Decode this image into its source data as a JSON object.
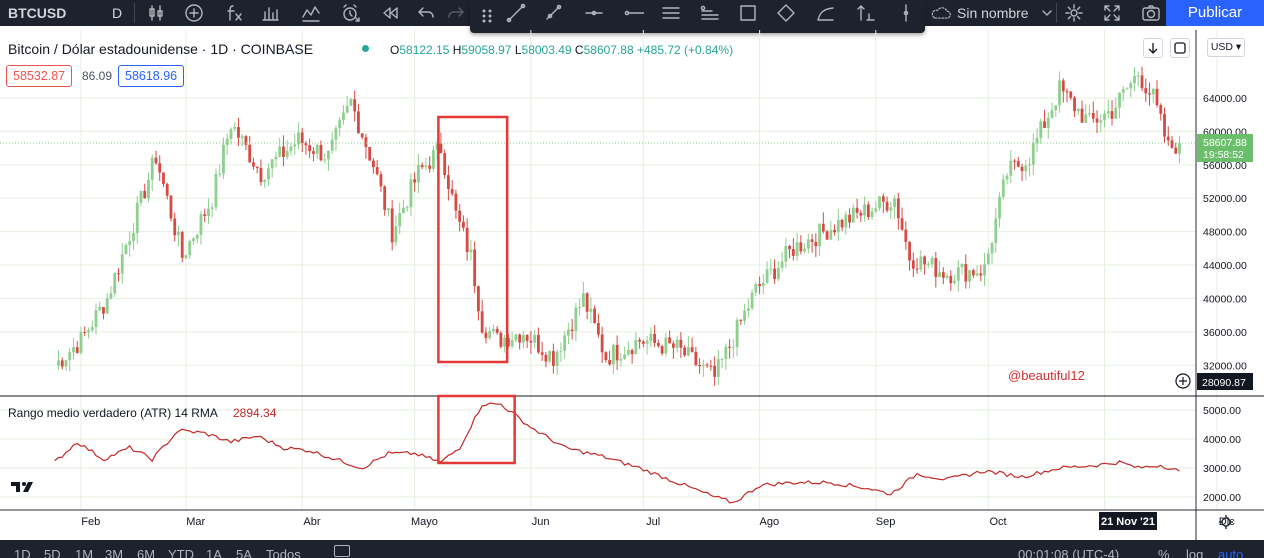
{
  "toolbar": {
    "symbol": "BTCUSD",
    "interval": "D",
    "layout_name": "Sin nombre",
    "publish_label": "Publicar",
    "icons": [
      "candles-icon",
      "add-icon",
      "fx-icon",
      "bar-chart-icon",
      "indicator-icon",
      "alert-icon",
      "replay-icon",
      "undo-icon",
      "redo-icon",
      "trendline-icon",
      "brush-icon",
      "horizontal-ray-icon",
      "horizontal-line-icon",
      "parallel-channel-icon",
      "pitchfork-icon",
      "rectangle-icon",
      "ellipse-icon",
      "polyline-icon",
      "fib-icon",
      "vertical-line-icon",
      "cloud-icon",
      "gear-icon",
      "fullscreen-icon",
      "camera-icon"
    ]
  },
  "legend": {
    "title": "Bitcoin / Dólar estadounidense · 1D · COINBASE",
    "open_k": "O",
    "open": "58122.15",
    "high_k": "H",
    "high": "59058.97",
    "low_k": "L",
    "low": "58003.49",
    "close_k": "C",
    "close": "58607.88",
    "change": "+485.72 (+0.84%)",
    "sell": "58532.87",
    "spread": "86.09",
    "buy": "58618.96"
  },
  "indicator": {
    "label": "Rango medio verdadero (ATR) 14 RMA",
    "value": "2894.34"
  },
  "currency": "USD",
  "bottom": {
    "ranges": [
      "1D",
      "5D",
      "1M",
      "3M",
      "6M",
      "YTD",
      "1A",
      "5A",
      "Todos"
    ],
    "clock": "00:01:08 (UTC-4)",
    "percent": "%",
    "log": "log",
    "auto": "auto"
  },
  "chart_data": [
    {
      "type": "candlestick",
      "title": "Bitcoin / Dólar estadounidense",
      "interval": "1D",
      "exchange": "COINBASE",
      "y_ticks": [
        "32000.00",
        "36000.00",
        "40000.00",
        "44000.00",
        "48000.00",
        "52000.00",
        "56000.00",
        "60000.00",
        "64000.00"
      ],
      "y_range": [
        28000,
        68000
      ],
      "x_labels": [
        "Feb",
        "Mar",
        "Abr",
        "Mayo",
        "Jun",
        "Jul",
        "Ago",
        "Sep",
        "Oct",
        "Nov",
        "Dic"
      ],
      "crosshair_date": "21 Nov '21",
      "last_price_label": "58607.88",
      "countdown": "19:58:52",
      "cursor_price": "28090.87",
      "watermark": "@beautiful12",
      "up_color": "#26a69a",
      "up_color_display": "#8fcf8f",
      "down_color": "#ef5350",
      "down_color_display": "#d74a44",
      "grid": true,
      "series": [
        {
          "name": "close",
          "points": [
            [
              "2021-01-25",
              32000
            ],
            [
              "2021-02-01",
              35000
            ],
            [
              "2021-02-08",
              40000
            ],
            [
              "2021-02-15",
              49000
            ],
            [
              "2021-02-21",
              57000
            ],
            [
              "2021-02-28",
              45000
            ],
            [
              "2021-03-08",
              52000
            ],
            [
              "2021-03-13",
              61000
            ],
            [
              "2021-03-21",
              55000
            ],
            [
              "2021-03-31",
              59000
            ],
            [
              "2021-04-08",
              57000
            ],
            [
              "2021-04-14",
              63500
            ],
            [
              "2021-04-20",
              56000
            ],
            [
              "2021-04-25",
              48000
            ],
            [
              "2021-05-02",
              55000
            ],
            [
              "2021-05-08",
              58000
            ],
            [
              "2021-05-12",
              50000
            ],
            [
              "2021-05-16",
              45000
            ],
            [
              "2021-05-19",
              37000
            ],
            [
              "2021-05-23",
              35000
            ],
            [
              "2021-05-30",
              36000
            ],
            [
              "2021-06-07",
              33000
            ],
            [
              "2021-06-15",
              40000
            ],
            [
              "2021-06-21",
              33000
            ],
            [
              "2021-06-30",
              35000
            ],
            [
              "2021-07-10",
              34000
            ],
            [
              "2021-07-20",
              30500
            ],
            [
              "2021-07-31",
              41000
            ],
            [
              "2021-08-10",
              46000
            ],
            [
              "2021-08-22",
              49000
            ],
            [
              "2021-09-06",
              52000
            ],
            [
              "2021-09-10",
              45000
            ],
            [
              "2021-09-20",
              43000
            ],
            [
              "2021-09-30",
              43500
            ],
            [
              "2021-10-06",
              55000
            ],
            [
              "2021-10-12",
              57000
            ],
            [
              "2021-10-20",
              65000
            ],
            [
              "2021-10-28",
              61000
            ],
            [
              "2021-11-03",
              62500
            ],
            [
              "2021-11-10",
              67000
            ],
            [
              "2021-11-14",
              64000
            ],
            [
              "2021-11-18",
              58000
            ],
            [
              "2021-11-21",
              58607.88
            ]
          ]
        }
      ],
      "highlight_range": [
        "2021-05-10",
        "2021-05-23"
      ]
    },
    {
      "type": "line",
      "title": "Rango medio verdadero (ATR) 14 RMA",
      "y_ticks": [
        "2000.00",
        "3000.00",
        "4000.00",
        "5000.00"
      ],
      "y_range": [
        1500,
        5500
      ],
      "series": [
        {
          "name": "ATR",
          "color": "#c62828",
          "points": [
            [
              "2021-01-25",
              3200
            ],
            [
              "2021-01-31",
              3900
            ],
            [
              "2021-02-07",
              3300
            ],
            [
              "2021-02-14",
              3700
            ],
            [
              "2021-02-20",
              3300
            ],
            [
              "2021-02-27",
              4300
            ],
            [
              "2021-03-06",
              4200
            ],
            [
              "2021-03-13",
              3900
            ],
            [
              "2021-03-20",
              4100
            ],
            [
              "2021-03-27",
              3700
            ],
            [
              "2021-04-03",
              3600
            ],
            [
              "2021-04-10",
              3300
            ],
            [
              "2021-04-17",
              3000
            ],
            [
              "2021-04-24",
              3500
            ],
            [
              "2021-05-01",
              3500
            ],
            [
              "2021-05-08",
              3200
            ],
            [
              "2021-05-13",
              3700
            ],
            [
              "2021-05-19",
              5200
            ],
            [
              "2021-05-24",
              5200
            ],
            [
              "2021-06-01",
              4400
            ],
            [
              "2021-06-10",
              3700
            ],
            [
              "2021-06-20",
              3400
            ],
            [
              "2021-06-30",
              3000
            ],
            [
              "2021-07-10",
              2500
            ],
            [
              "2021-07-20",
              2000
            ],
            [
              "2021-07-25",
              1800
            ],
            [
              "2021-08-01",
              2400
            ],
            [
              "2021-08-10",
              2500
            ],
            [
              "2021-08-20",
              2500
            ],
            [
              "2021-08-30",
              2300
            ],
            [
              "2021-09-05",
              2100
            ],
            [
              "2021-09-12",
              2800
            ],
            [
              "2021-09-20",
              2600
            ],
            [
              "2021-09-30",
              2900
            ],
            [
              "2021-10-10",
              2700
            ],
            [
              "2021-10-20",
              3000
            ],
            [
              "2021-10-30",
              3100
            ],
            [
              "2021-11-05",
              3200
            ],
            [
              "2021-11-10",
              3000
            ],
            [
              "2021-11-16",
              3100
            ],
            [
              "2021-11-21",
              2894.34
            ]
          ]
        }
      ],
      "highlight_range": [
        "2021-05-10",
        "2021-05-25"
      ]
    }
  ]
}
